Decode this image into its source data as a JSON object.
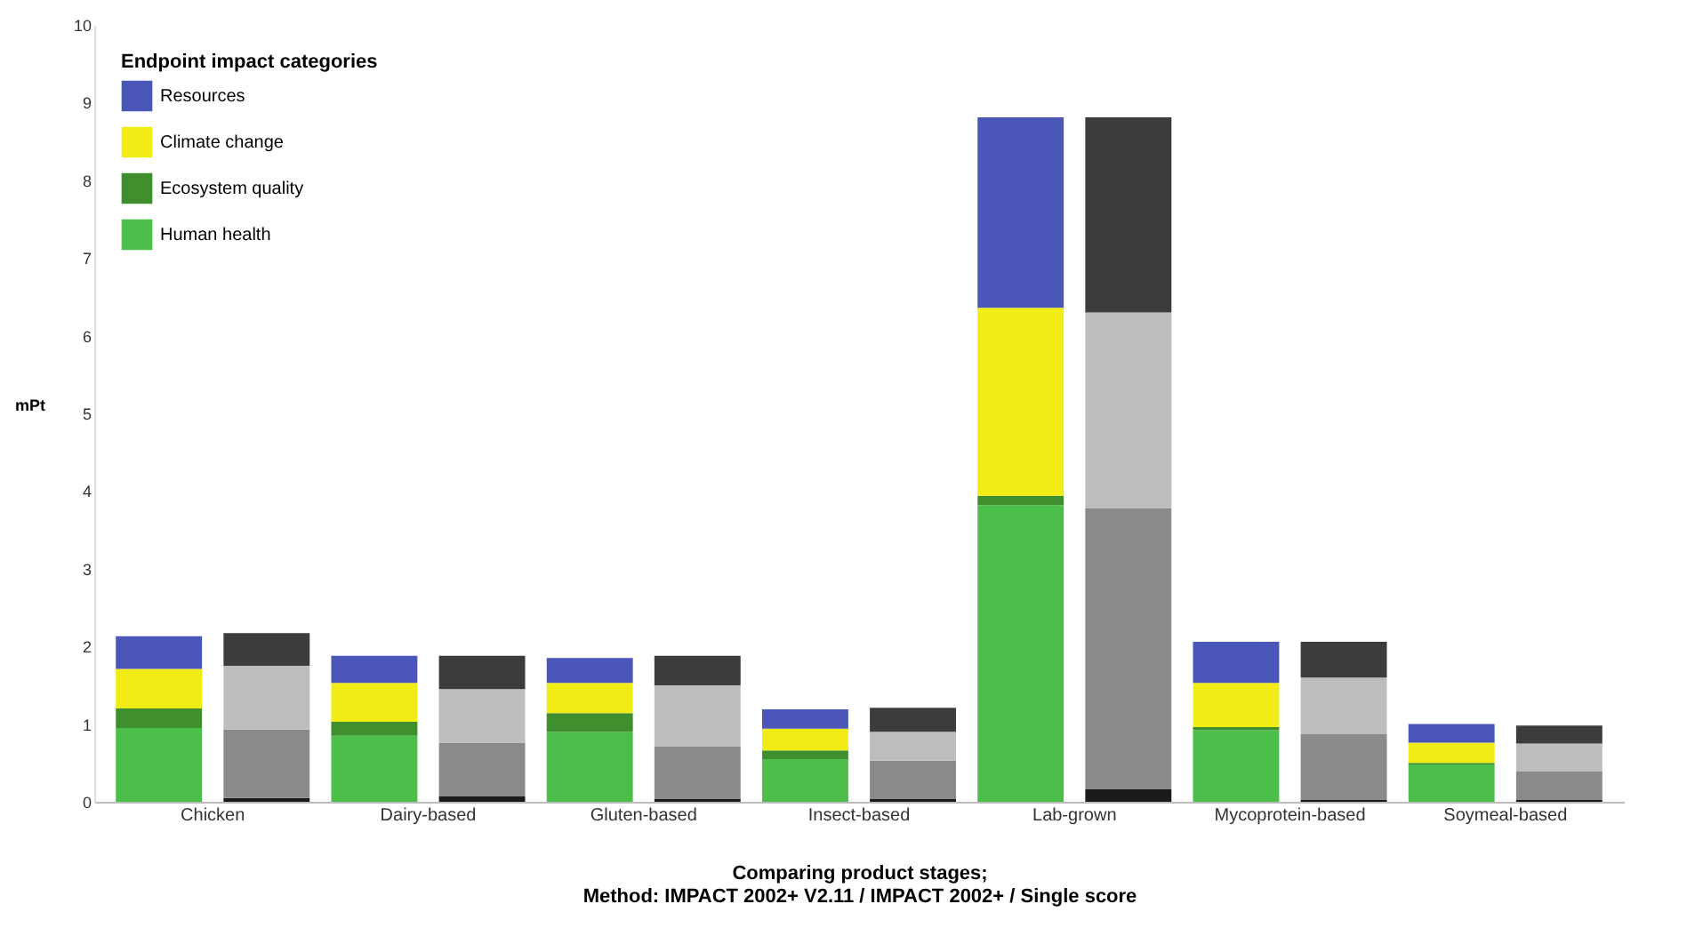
{
  "chart_data": {
    "type": "bar",
    "stacked": true,
    "legend": "top left",
    "legend_title": "Endpoint impact categories",
    "ylabel": "mPt",
    "xlabel": "Comparing product stages;\nMethod: IMPACT 2002+ V2.11 / IMPACT 2002+ / Single score",
    "categories": [
      "Chicken",
      null,
      "Dairy-based",
      null,
      "Gluten-based",
      null,
      "Insect-based",
      null,
      "Lab-grown",
      null,
      "Mycoprotein-based",
      null,
      "Soymeal-based",
      null
    ],
    "ylim": [
      0,
      10
    ],
    "yticks": [
      0,
      1,
      2,
      3,
      4,
      5,
      6,
      7,
      8,
      9,
      10
    ],
    "grid": false,
    "series": [
      {
        "name": "Human health",
        "color": "#4cbf4a",
        "values": [
          0.95,
          null,
          0.85,
          null,
          0.9,
          null,
          0.55,
          null,
          3.82,
          null,
          0.92,
          null,
          0.48,
          null
        ]
      },
      {
        "name": "Ecosystem quality",
        "color": "#3f8f2f",
        "values": [
          0.25,
          null,
          0.18,
          null,
          0.24,
          null,
          0.11,
          null,
          0.12,
          null,
          0.04,
          null,
          0.02,
          null
        ]
      },
      {
        "name": "Climate change",
        "color": "#f2ec16",
        "values": [
          0.51,
          null,
          0.5,
          null,
          0.39,
          null,
          0.28,
          null,
          2.42,
          null,
          0.57,
          null,
          0.26,
          null
        ]
      },
      {
        "name": "Resources",
        "color": "#4a57b8",
        "values": [
          0.42,
          null,
          0.35,
          null,
          0.32,
          null,
          0.25,
          null,
          2.45,
          null,
          0.53,
          null,
          0.24,
          null
        ]
      },
      {
        "color": "#1a1a1a",
        "values": [
          null,
          0.05,
          null,
          0.07,
          null,
          0.04,
          null,
          0.04,
          null,
          0.16,
          null,
          0.03,
          null,
          0.03
        ]
      },
      {
        "color": "#8a8a8a",
        "values": [
          null,
          0.88,
          null,
          0.69,
          null,
          0.67,
          null,
          0.49,
          null,
          3.62,
          null,
          0.84,
          null,
          0.36
        ]
      },
      {
        "color": "#bdbdbd",
        "values": [
          null,
          0.82,
          null,
          0.69,
          null,
          0.79,
          null,
          0.37,
          null,
          2.52,
          null,
          0.73,
          null,
          0.36
        ]
      },
      {
        "color": "#3c3c3c",
        "values": [
          null,
          0.42,
          null,
          0.43,
          null,
          0.38,
          null,
          0.31,
          null,
          2.51,
          null,
          0.46,
          null,
          0.23
        ]
      }
    ]
  }
}
